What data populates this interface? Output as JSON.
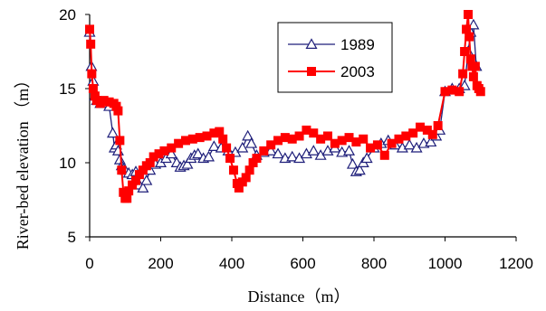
{
  "chart_data": {
    "type": "line",
    "title": "",
    "xlabel": "Distance（m）",
    "ylabel": "River-bed elevation （m）",
    "xlim": [
      0,
      1200
    ],
    "ylim": [
      5,
      20
    ],
    "x_ticks": [
      "0",
      "200",
      "400",
      "600",
      "800",
      "1000",
      "1200"
    ],
    "y_ticks": [
      "5",
      "10",
      "15",
      "20"
    ],
    "grid": false,
    "legend_position": "top-right-inside",
    "colors": {
      "1989": "#1f1f7a",
      "2003": "#ff0000"
    },
    "series": [
      {
        "name": "1989",
        "marker": "open-triangle",
        "x": [
          0,
          5,
          10,
          15,
          20,
          30,
          40,
          55,
          65,
          70,
          75,
          80,
          85,
          90,
          95,
          100,
          110,
          120,
          130,
          140,
          150,
          160,
          170,
          185,
          200,
          215,
          230,
          245,
          255,
          265,
          275,
          285,
          295,
          305,
          320,
          335,
          350,
          370,
          390,
          410,
          430,
          445,
          455,
          470,
          490,
          510,
          530,
          550,
          570,
          590,
          610,
          630,
          650,
          670,
          690,
          710,
          730,
          740,
          750,
          760,
          770,
          780,
          800,
          820,
          840,
          860,
          880,
          900,
          920,
          940,
          960,
          975,
          985,
          1000,
          1020,
          1040,
          1055,
          1065,
          1072,
          1080,
          1088
        ],
        "y": [
          18.8,
          16.5,
          15.5,
          14.5,
          14.2,
          14.0,
          14.0,
          13.8,
          12.0,
          11.0,
          11.2,
          10.8,
          10.2,
          9.8,
          9.6,
          9.5,
          9.3,
          9.2,
          9.4,
          8.5,
          8.3,
          8.8,
          9.5,
          9.9,
          10.0,
          10.3,
          10.6,
          10.0,
          9.7,
          9.8,
          9.9,
          10.3,
          10.5,
          10.6,
          10.3,
          10.4,
          11.1,
          11.0,
          10.8,
          10.7,
          11.0,
          11.8,
          11.3,
          10.5,
          10.7,
          10.8,
          10.6,
          10.3,
          10.4,
          10.3,
          10.6,
          10.8,
          10.5,
          10.8,
          11.0,
          10.7,
          10.8,
          9.9,
          9.4,
          9.5,
          10.0,
          10.3,
          11.0,
          11.3,
          11.5,
          11.2,
          11.0,
          11.2,
          11.0,
          11.3,
          11.4,
          11.8,
          12.2,
          14.8,
          15.0,
          15.0,
          15.2,
          17.5,
          18.8,
          19.3,
          16.5
        ]
      },
      {
        "name": "2003",
        "marker": "filled-square",
        "x": [
          0,
          3,
          6,
          10,
          15,
          20,
          30,
          40,
          55,
          68,
          75,
          80,
          85,
          90,
          95,
          100,
          105,
          110,
          120,
          130,
          140,
          150,
          160,
          170,
          180,
          195,
          210,
          230,
          250,
          270,
          290,
          310,
          330,
          350,
          365,
          375,
          385,
          395,
          405,
          415,
          420,
          430,
          440,
          450,
          460,
          470,
          490,
          510,
          530,
          550,
          570,
          590,
          610,
          630,
          650,
          670,
          690,
          710,
          730,
          750,
          770,
          790,
          810,
          830,
          850,
          870,
          890,
          910,
          930,
          950,
          965,
          980,
          1000,
          1020,
          1040,
          1050,
          1055,
          1060,
          1065,
          1068,
          1072,
          1076,
          1080,
          1085,
          1090,
          1095,
          1100
        ],
        "y": [
          19.0,
          18.0,
          16.0,
          15.0,
          14.5,
          14.2,
          14.0,
          14.2,
          14.1,
          14.0,
          13.8,
          13.5,
          11.5,
          9.5,
          8.0,
          7.6,
          7.6,
          8.1,
          8.5,
          8.8,
          9.2,
          9.5,
          9.8,
          10.0,
          10.4,
          10.6,
          10.8,
          11.0,
          11.3,
          11.5,
          11.6,
          11.7,
          11.8,
          12.0,
          12.1,
          11.6,
          11.0,
          10.3,
          9.5,
          8.6,
          8.3,
          8.7,
          9.0,
          9.5,
          10.0,
          10.3,
          10.8,
          11.2,
          11.5,
          11.7,
          11.6,
          11.8,
          12.2,
          12.0,
          11.6,
          11.8,
          11.3,
          11.5,
          11.7,
          11.4,
          11.6,
          11.0,
          11.2,
          10.5,
          11.3,
          11.6,
          11.8,
          12.0,
          12.4,
          12.2,
          11.9,
          12.5,
          14.8,
          14.9,
          14.8,
          16.0,
          17.5,
          19.0,
          20.0,
          18.5,
          17.0,
          16.5,
          15.8,
          16.5,
          15.2,
          15.0,
          14.8
        ]
      }
    ]
  }
}
